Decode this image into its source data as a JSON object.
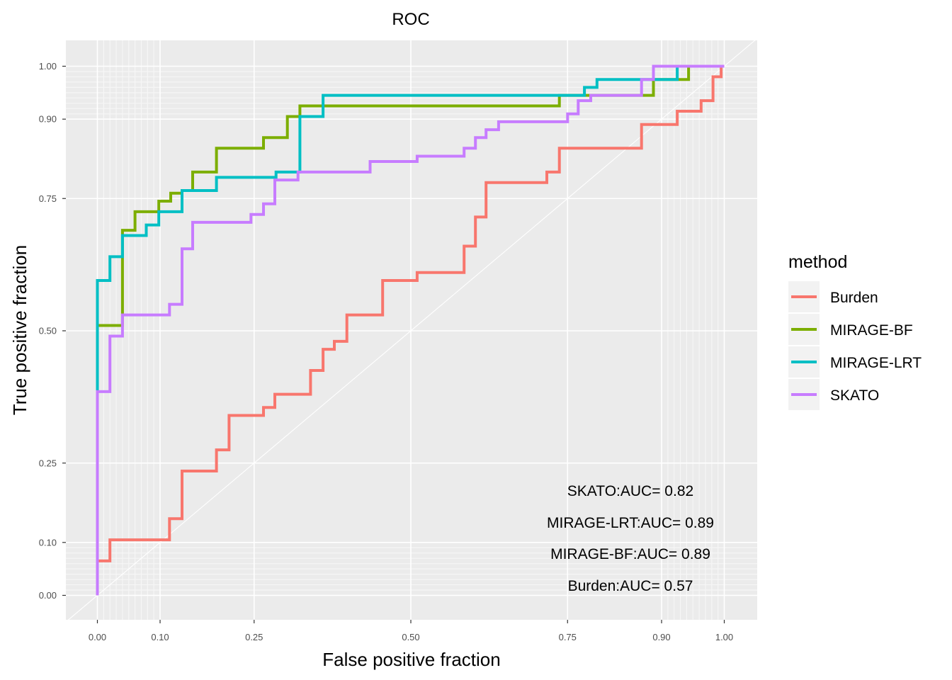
{
  "chart_data": {
    "type": "line",
    "title": "ROC",
    "xlabel": "False positive fraction",
    "ylabel": "True positive fraction",
    "xlim": [
      0,
      1
    ],
    "ylim": [
      0,
      1
    ],
    "x_ticks": [
      0.0,
      0.1,
      0.25,
      0.5,
      0.75,
      0.9,
      1.0
    ],
    "x_tick_labels": [
      "0.00",
      "0.10",
      "0.25",
      "0.50",
      "0.75",
      "0.90",
      "1.00"
    ],
    "y_ticks": [
      0.0,
      0.1,
      0.25,
      0.5,
      0.75,
      0.9,
      1.0
    ],
    "y_tick_labels": [
      "0.00",
      "0.10",
      "0.25",
      "0.50",
      "0.75",
      "0.90",
      "1.00"
    ],
    "minor_grid": [
      0.01,
      0.02,
      0.03,
      0.04,
      0.05,
      0.06,
      0.07,
      0.08,
      0.09,
      0.91,
      0.92,
      0.93,
      0.94,
      0.95,
      0.96,
      0.97,
      0.98,
      0.99
    ],
    "grid": true,
    "diagonal_reference": true,
    "legend": {
      "title": "method",
      "position": "right"
    },
    "series": [
      {
        "name": "Burden",
        "color": "#F8766D",
        "points": [
          [
            0.0,
            0.0
          ],
          [
            0.0,
            0.065
          ],
          [
            0.02,
            0.065
          ],
          [
            0.02,
            0.105
          ],
          [
            0.115,
            0.105
          ],
          [
            0.115,
            0.145
          ],
          [
            0.135,
            0.145
          ],
          [
            0.135,
            0.235
          ],
          [
            0.19,
            0.235
          ],
          [
            0.19,
            0.275
          ],
          [
            0.21,
            0.275
          ],
          [
            0.21,
            0.34
          ],
          [
            0.265,
            0.34
          ],
          [
            0.265,
            0.355
          ],
          [
            0.283,
            0.355
          ],
          [
            0.283,
            0.38
          ],
          [
            0.34,
            0.38
          ],
          [
            0.34,
            0.425
          ],
          [
            0.36,
            0.425
          ],
          [
            0.36,
            0.465
          ],
          [
            0.378,
            0.465
          ],
          [
            0.378,
            0.48
          ],
          [
            0.398,
            0.48
          ],
          [
            0.398,
            0.53
          ],
          [
            0.455,
            0.53
          ],
          [
            0.455,
            0.595
          ],
          [
            0.51,
            0.595
          ],
          [
            0.51,
            0.61
          ],
          [
            0.585,
            0.61
          ],
          [
            0.585,
            0.66
          ],
          [
            0.603,
            0.66
          ],
          [
            0.603,
            0.715
          ],
          [
            0.62,
            0.715
          ],
          [
            0.62,
            0.78
          ],
          [
            0.717,
            0.78
          ],
          [
            0.717,
            0.8
          ],
          [
            0.737,
            0.8
          ],
          [
            0.737,
            0.845
          ],
          [
            0.868,
            0.845
          ],
          [
            0.868,
            0.89
          ],
          [
            0.925,
            0.89
          ],
          [
            0.925,
            0.915
          ],
          [
            0.963,
            0.915
          ],
          [
            0.963,
            0.935
          ],
          [
            0.982,
            0.935
          ],
          [
            0.982,
            0.98
          ],
          [
            0.995,
            0.98
          ],
          [
            0.995,
            1.0
          ],
          [
            1.0,
            1.0
          ]
        ],
        "auc_label": "Burden:AUC= 0.57"
      },
      {
        "name": "MIRAGE-BF",
        "color": "#7CAE00",
        "points": [
          [
            0.0,
            0.0
          ],
          [
            0.0,
            0.51
          ],
          [
            0.04,
            0.51
          ],
          [
            0.04,
            0.69
          ],
          [
            0.06,
            0.69
          ],
          [
            0.06,
            0.725
          ],
          [
            0.098,
            0.725
          ],
          [
            0.098,
            0.745
          ],
          [
            0.117,
            0.745
          ],
          [
            0.117,
            0.76
          ],
          [
            0.135,
            0.76
          ],
          [
            0.135,
            0.765
          ],
          [
            0.152,
            0.765
          ],
          [
            0.152,
            0.8
          ],
          [
            0.19,
            0.8
          ],
          [
            0.19,
            0.845
          ],
          [
            0.265,
            0.845
          ],
          [
            0.265,
            0.865
          ],
          [
            0.303,
            0.865
          ],
          [
            0.303,
            0.905
          ],
          [
            0.323,
            0.905
          ],
          [
            0.323,
            0.925
          ],
          [
            0.737,
            0.925
          ],
          [
            0.737,
            0.945
          ],
          [
            0.887,
            0.945
          ],
          [
            0.887,
            0.975
          ],
          [
            0.943,
            0.975
          ],
          [
            0.943,
            1.0
          ],
          [
            1.0,
            1.0
          ]
        ],
        "auc_label": "MIRAGE-BF:AUC= 0.89"
      },
      {
        "name": "MIRAGE-LRT",
        "color": "#00BFC4",
        "points": [
          [
            0.0,
            0.0
          ],
          [
            0.0,
            0.385
          ],
          [
            0.0,
            0.595
          ],
          [
            0.02,
            0.595
          ],
          [
            0.02,
            0.64
          ],
          [
            0.04,
            0.64
          ],
          [
            0.04,
            0.68
          ],
          [
            0.078,
            0.68
          ],
          [
            0.078,
            0.7
          ],
          [
            0.098,
            0.7
          ],
          [
            0.098,
            0.725
          ],
          [
            0.135,
            0.725
          ],
          [
            0.135,
            0.765
          ],
          [
            0.19,
            0.765
          ],
          [
            0.19,
            0.79
          ],
          [
            0.285,
            0.79
          ],
          [
            0.285,
            0.8
          ],
          [
            0.323,
            0.8
          ],
          [
            0.323,
            0.905
          ],
          [
            0.36,
            0.905
          ],
          [
            0.36,
            0.945
          ],
          [
            0.777,
            0.945
          ],
          [
            0.777,
            0.96
          ],
          [
            0.797,
            0.96
          ],
          [
            0.797,
            0.975
          ],
          [
            0.925,
            0.975
          ],
          [
            0.925,
            1.0
          ],
          [
            1.0,
            1.0
          ]
        ],
        "auc_label": "MIRAGE-LRT:AUC= 0.89"
      },
      {
        "name": "SKATO",
        "color": "#C77CFF",
        "points": [
          [
            0.0,
            0.0
          ],
          [
            0.0,
            0.385
          ],
          [
            0.02,
            0.385
          ],
          [
            0.02,
            0.49
          ],
          [
            0.04,
            0.49
          ],
          [
            0.04,
            0.53
          ],
          [
            0.115,
            0.53
          ],
          [
            0.115,
            0.55
          ],
          [
            0.135,
            0.55
          ],
          [
            0.135,
            0.655
          ],
          [
            0.152,
            0.655
          ],
          [
            0.152,
            0.705
          ],
          [
            0.245,
            0.705
          ],
          [
            0.245,
            0.72
          ],
          [
            0.265,
            0.72
          ],
          [
            0.265,
            0.74
          ],
          [
            0.283,
            0.74
          ],
          [
            0.283,
            0.785
          ],
          [
            0.32,
            0.785
          ],
          [
            0.32,
            0.8
          ],
          [
            0.435,
            0.8
          ],
          [
            0.435,
            0.82
          ],
          [
            0.51,
            0.82
          ],
          [
            0.51,
            0.83
          ],
          [
            0.585,
            0.83
          ],
          [
            0.585,
            0.845
          ],
          [
            0.603,
            0.845
          ],
          [
            0.603,
            0.865
          ],
          [
            0.62,
            0.865
          ],
          [
            0.62,
            0.88
          ],
          [
            0.64,
            0.88
          ],
          [
            0.64,
            0.895
          ],
          [
            0.75,
            0.895
          ],
          [
            0.75,
            0.91
          ],
          [
            0.767,
            0.91
          ],
          [
            0.767,
            0.935
          ],
          [
            0.787,
            0.935
          ],
          [
            0.787,
            0.945
          ],
          [
            0.868,
            0.945
          ],
          [
            0.868,
            0.975
          ],
          [
            0.887,
            0.975
          ],
          [
            0.887,
            1.0
          ],
          [
            1.0,
            1.0
          ]
        ],
        "auc_label": "SKATO:AUC= 0.82"
      }
    ],
    "annotations": [
      "SKATO:AUC= 0.82",
      "MIRAGE-LRT:AUC= 0.89",
      "MIRAGE-BF:AUC= 0.89",
      "Burden:AUC= 0.57"
    ]
  }
}
